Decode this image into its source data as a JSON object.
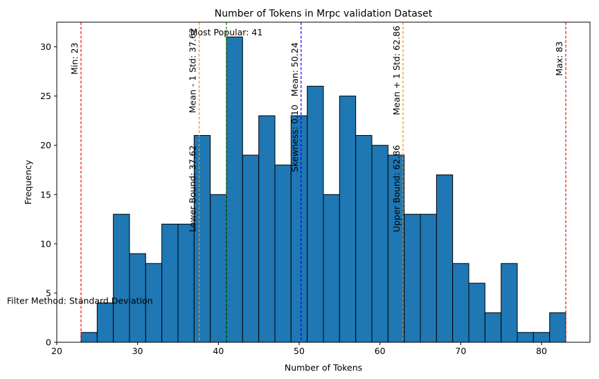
{
  "chart_data": {
    "type": "bar",
    "title": "Number of Tokens in Mrpc validation Dataset",
    "xlabel": "Number of Tokens",
    "ylabel": "Frequency",
    "xlim": [
      20,
      86
    ],
    "ylim": [
      0,
      32.5
    ],
    "xticks": [
      20,
      30,
      40,
      50,
      60,
      70,
      80
    ],
    "yticks": [
      0,
      5,
      10,
      15,
      20,
      25,
      30
    ],
    "bin_start": 23,
    "bin_width": 2,
    "values": [
      1,
      4,
      13,
      9,
      8,
      12,
      12,
      21,
      15,
      31,
      19,
      23,
      18,
      23,
      26,
      15,
      25,
      21,
      20,
      19,
      13,
      13,
      17,
      8,
      6,
      3,
      8,
      1,
      1,
      3
    ],
    "bar_color": "#1f77b4",
    "grid": false,
    "reference_lines": [
      {
        "x": 23,
        "label": "Min: 23",
        "color": "#ff0000",
        "label_y": 28.8
      },
      {
        "x": 83,
        "label": "Max: 83",
        "color": "#ff0000",
        "label_y": 28.8
      },
      {
        "x": 41,
        "label": "Most Popular: 41",
        "color": "#008000"
      },
      {
        "x": 50.24,
        "label": "Mean: 50.24",
        "color": "#0000ff",
        "label_y": 27.7
      },
      {
        "x": 37.62,
        "label": "Mean - 1 Std: 37.62",
        "color": "#800080",
        "label_y": 27.6,
        "line_color": "#ff8c00"
      },
      {
        "x": 62.86,
        "label": "Mean + 1 Std: 62.86",
        "color": "#800080",
        "label_y": 27.6,
        "line_color": "#ff8c00"
      },
      {
        "x": 37.62,
        "label": "Lower Bound: 37.62",
        "color": "#ff8c00",
        "label_y": 15.6
      },
      {
        "x": 62.86,
        "label": "Upper Bound: 62.86",
        "color": "#ff8c00",
        "label_y": 15.6
      }
    ],
    "annotations": [
      {
        "text": "Skewness: 0.10",
        "x": 50.24,
        "y": 20.7
      },
      {
        "text": "Filter Method: Standard Deviation",
        "x": 22.0,
        "y": 4.2
      }
    ]
  }
}
